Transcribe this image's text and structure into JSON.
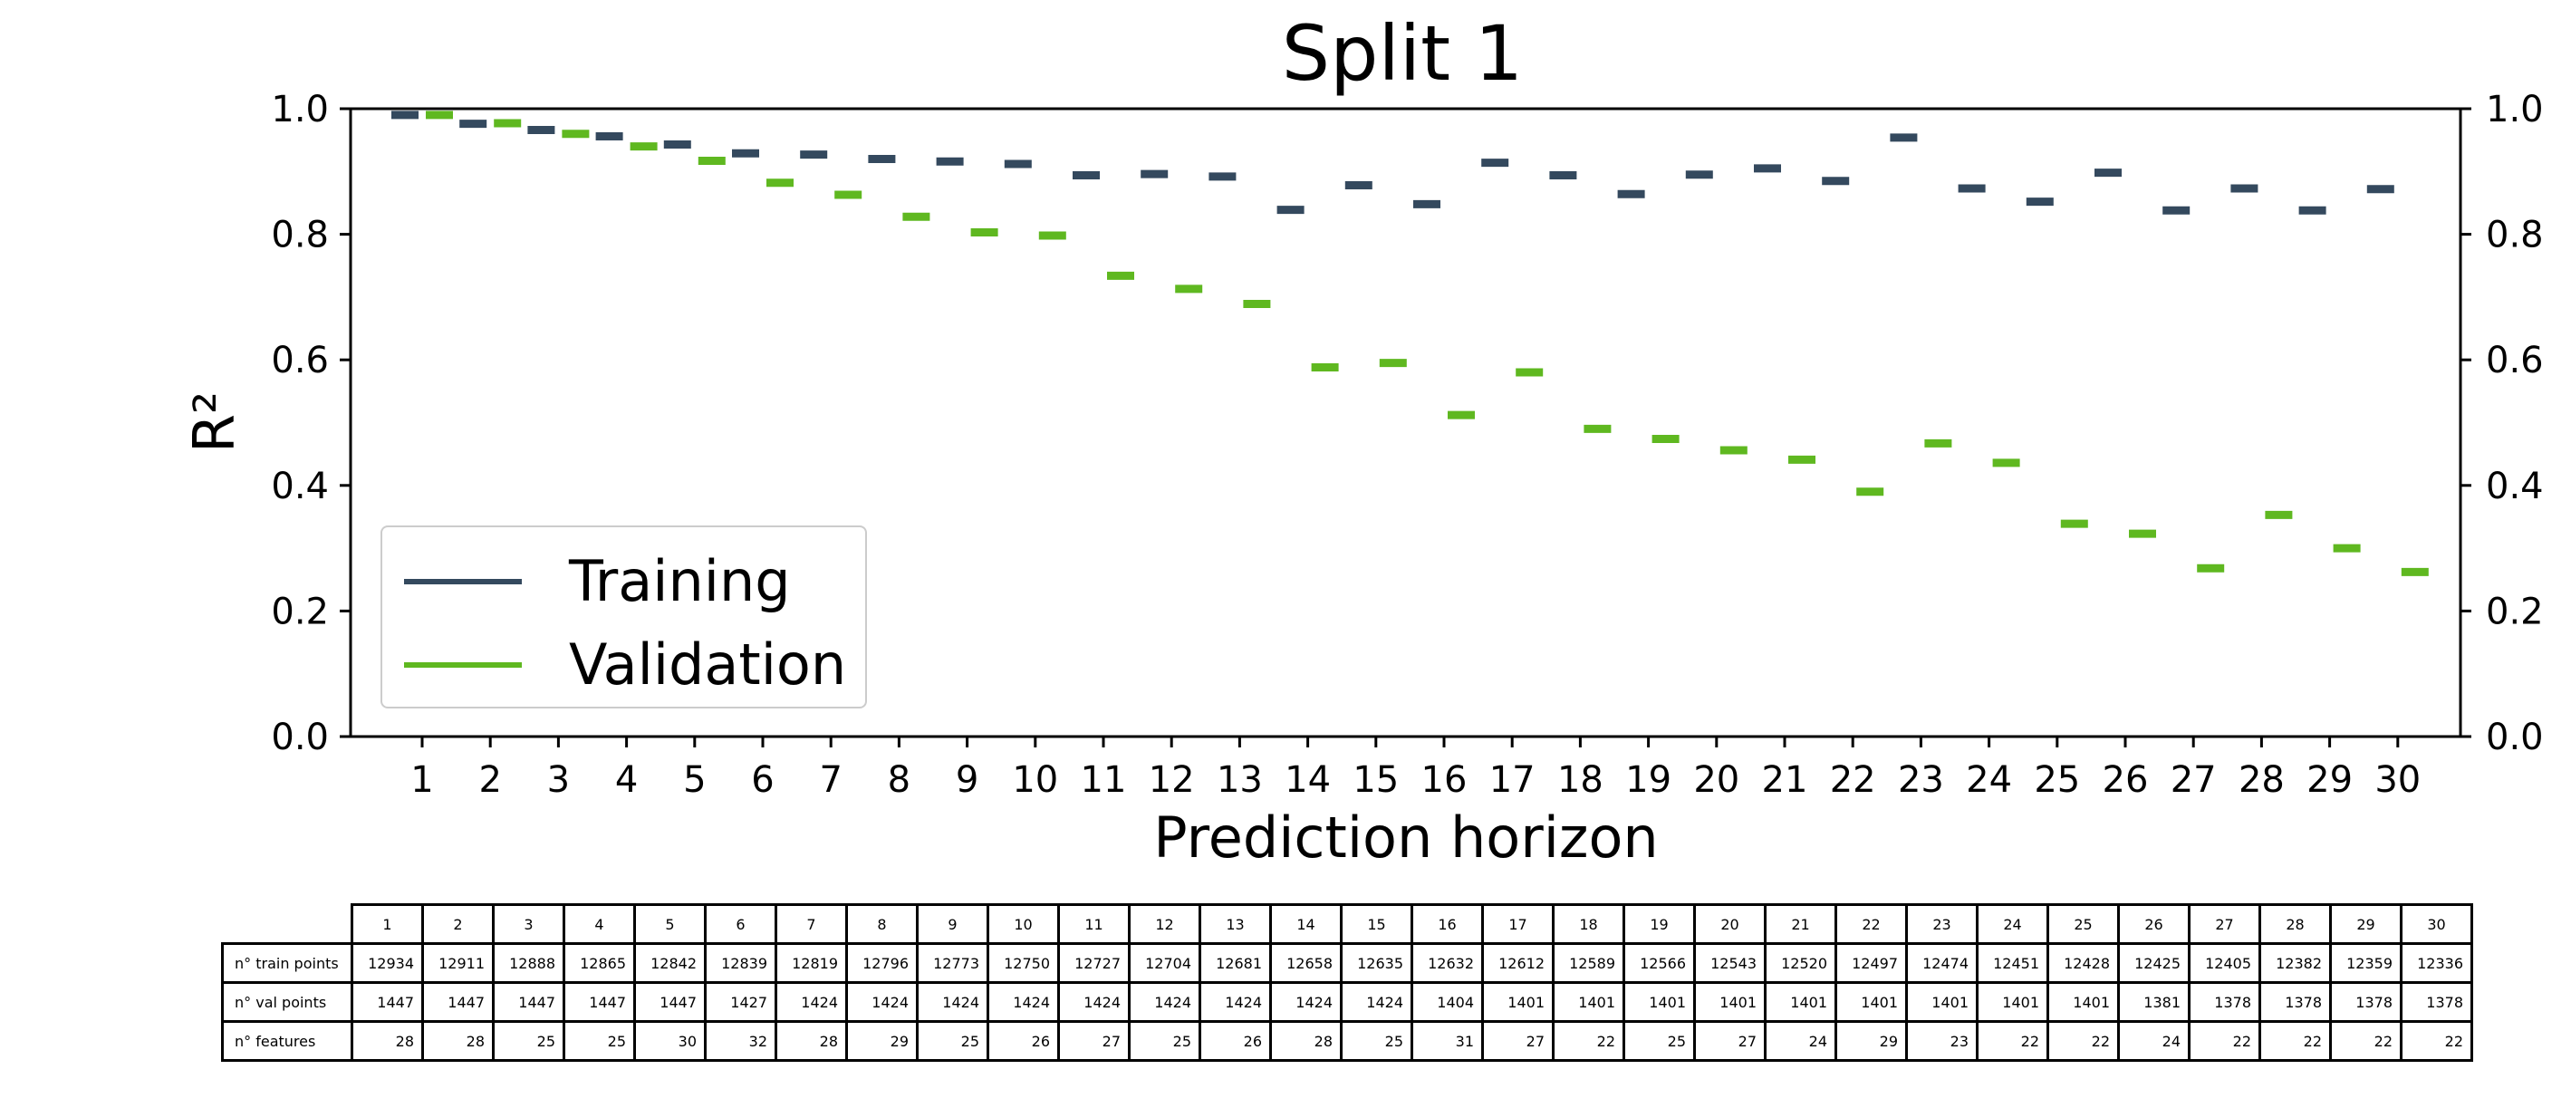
{
  "chart_data": {
    "type": "scatter",
    "title": "Split 1",
    "xlabel": "Prediction horizon",
    "ylabel": "R²",
    "ylim": [
      0,
      1.0
    ],
    "yticks": [
      "0.0",
      "0.2",
      "0.4",
      "0.6",
      "0.8",
      "1.0"
    ],
    "right_yticks": [
      "0.0",
      "0.2",
      "0.4",
      "0.6",
      "0.8",
      "1.0"
    ],
    "categories": [
      "1",
      "2",
      "3",
      "4",
      "5",
      "6",
      "7",
      "8",
      "9",
      "10",
      "11",
      "12",
      "13",
      "14",
      "15",
      "16",
      "17",
      "18",
      "19",
      "20",
      "21",
      "22",
      "23",
      "24",
      "25",
      "26",
      "27",
      "28",
      "29",
      "30"
    ],
    "series": [
      {
        "name": "Training",
        "color": "#34495e",
        "values": [
          0.99,
          0.976,
          0.966,
          0.956,
          0.943,
          0.929,
          0.927,
          0.92,
          0.916,
          0.912,
          0.894,
          0.896,
          0.892,
          0.839,
          0.878,
          0.848,
          0.914,
          0.894,
          0.864,
          0.895,
          0.905,
          0.885,
          0.954,
          0.873,
          0.852,
          0.898,
          0.838,
          0.873,
          0.838,
          0.872
        ]
      },
      {
        "name": "Validation",
        "color": "#5fb820",
        "values": [
          0.99,
          0.977,
          0.96,
          0.94,
          0.917,
          0.882,
          0.863,
          0.828,
          0.803,
          0.798,
          0.734,
          0.713,
          0.689,
          0.588,
          0.595,
          0.512,
          0.58,
          0.49,
          0.474,
          0.456,
          0.441,
          0.39,
          0.467,
          0.436,
          0.339,
          0.323,
          0.268,
          0.353,
          0.3,
          0.262
        ]
      }
    ],
    "legend_position": "lower-left",
    "grid": false
  },
  "table": {
    "rows": [
      {
        "label": "n° train points",
        "values": [
          "12934",
          "12911",
          "12888",
          "12865",
          "12842",
          "12839",
          "12819",
          "12796",
          "12773",
          "12750",
          "12727",
          "12704",
          "12681",
          "12658",
          "12635",
          "12632",
          "12612",
          "12589",
          "12566",
          "12543",
          "12520",
          "12497",
          "12474",
          "12451",
          "12428",
          "12425",
          "12405",
          "12382",
          "12359",
          "12336"
        ]
      },
      {
        "label": "n° val points",
        "values": [
          "1447",
          "1447",
          "1447",
          "1447",
          "1447",
          "1427",
          "1424",
          "1424",
          "1424",
          "1424",
          "1424",
          "1424",
          "1424",
          "1424",
          "1424",
          "1404",
          "1401",
          "1401",
          "1401",
          "1401",
          "1401",
          "1401",
          "1401",
          "1401",
          "1401",
          "1381",
          "1378",
          "1378",
          "1378",
          "1378"
        ]
      },
      {
        "label": "n° features",
        "values": [
          "28",
          "28",
          "25",
          "25",
          "30",
          "32",
          "28",
          "29",
          "25",
          "26",
          "27",
          "25",
          "26",
          "28",
          "25",
          "31",
          "27",
          "22",
          "25",
          "27",
          "24",
          "29",
          "23",
          "22",
          "22",
          "24",
          "22",
          "22",
          "22",
          "22"
        ]
      }
    ]
  }
}
